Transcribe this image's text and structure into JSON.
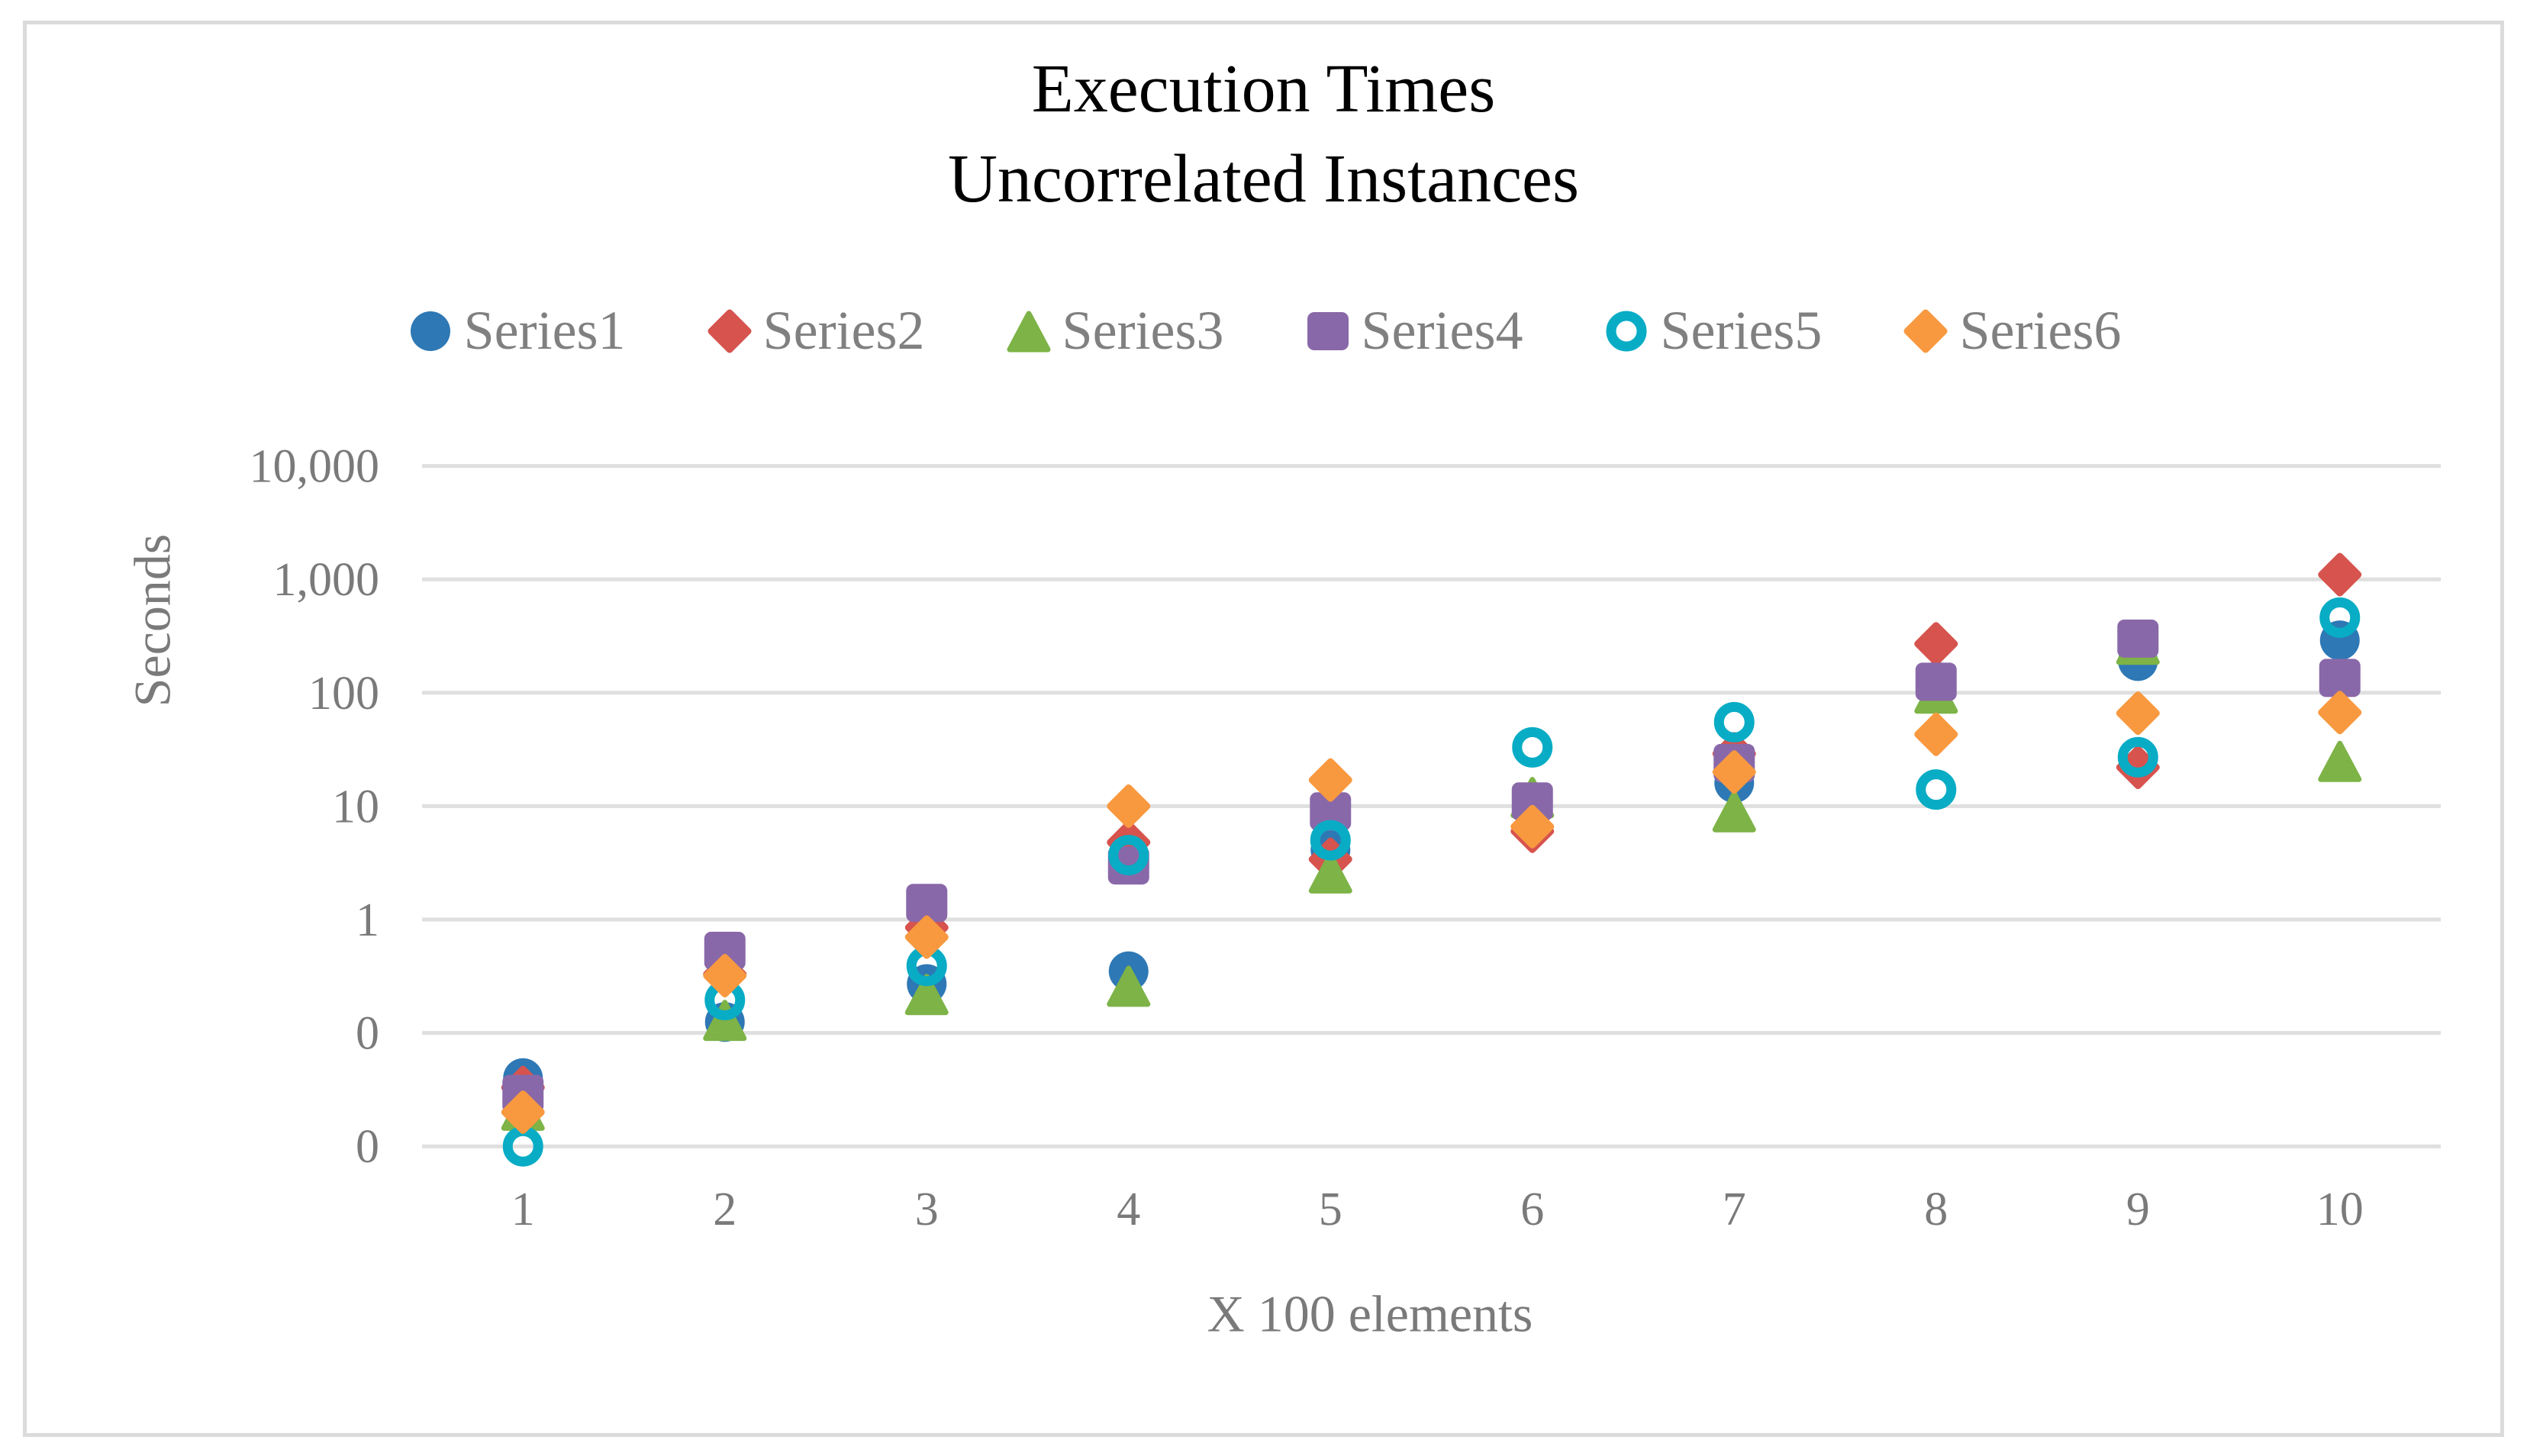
{
  "chart_data": {
    "type": "scatter",
    "title_line1": "Execution Times",
    "title_line2": "Uncorrelated Instances",
    "ylabel": "Seconds",
    "xlabel": "X 100 elements",
    "y_scale": "log",
    "grid": true,
    "legend_position": "top",
    "y_ticks": [
      {
        "value": 10000,
        "label": "10,000"
      },
      {
        "value": 1000,
        "label": "1,000"
      },
      {
        "value": 100,
        "label": "100"
      },
      {
        "value": 10,
        "label": "10"
      },
      {
        "value": 1,
        "label": "1"
      },
      {
        "value": 0.1,
        "label": "0"
      },
      {
        "value": 0.01,
        "label": "0"
      }
    ],
    "x_values": [
      1,
      2,
      3,
      4,
      5,
      6,
      7,
      8,
      9,
      10
    ],
    "x_tick_labels": [
      "1",
      "2",
      "3",
      "4",
      "5",
      "6",
      "7",
      "8",
      "9",
      "10"
    ],
    "series": [
      {
        "name": "Series1",
        "marker": "circle",
        "color": "#2E78B5",
        "values": [
          0.04,
          0.125,
          0.27,
          0.35,
          4.1,
          10,
          16,
          125,
          190,
          290
        ]
      },
      {
        "name": "Series2",
        "marker": "diamond",
        "color": "#D6534E",
        "values": [
          0.033,
          0.33,
          0.85,
          4.8,
          3.4,
          6,
          29,
          270,
          22,
          1100
        ]
      },
      {
        "name": "Series3",
        "marker": "triangle",
        "color": "#7DB347",
        "values": [
          0.021,
          0.13,
          0.22,
          0.26,
          2.6,
          12,
          9,
          100,
          270,
          25
        ]
      },
      {
        "name": "Series4",
        "marker": "square",
        "color": "#8968A9",
        "values": [
          0.029,
          0.53,
          1.4,
          3.0,
          9,
          11,
          24,
          125,
          300,
          135
        ]
      },
      {
        "name": "Series5",
        "marker": "open-circle",
        "color": "#09ACC5",
        "values": [
          0.01,
          0.195,
          0.39,
          3.7,
          5,
          33,
          55,
          14,
          27,
          460
        ]
      },
      {
        "name": "Series6",
        "marker": "diamond",
        "color": "#F8993F",
        "values": [
          0.02,
          0.32,
          0.7,
          10,
          17,
          6.6,
          20,
          43,
          66,
          67
        ]
      }
    ],
    "colors": {
      "gridline": "#DFDFDF",
      "tick_text": "#7A7A7A",
      "title_text": "#000000",
      "border": "#DBDBDB"
    }
  }
}
